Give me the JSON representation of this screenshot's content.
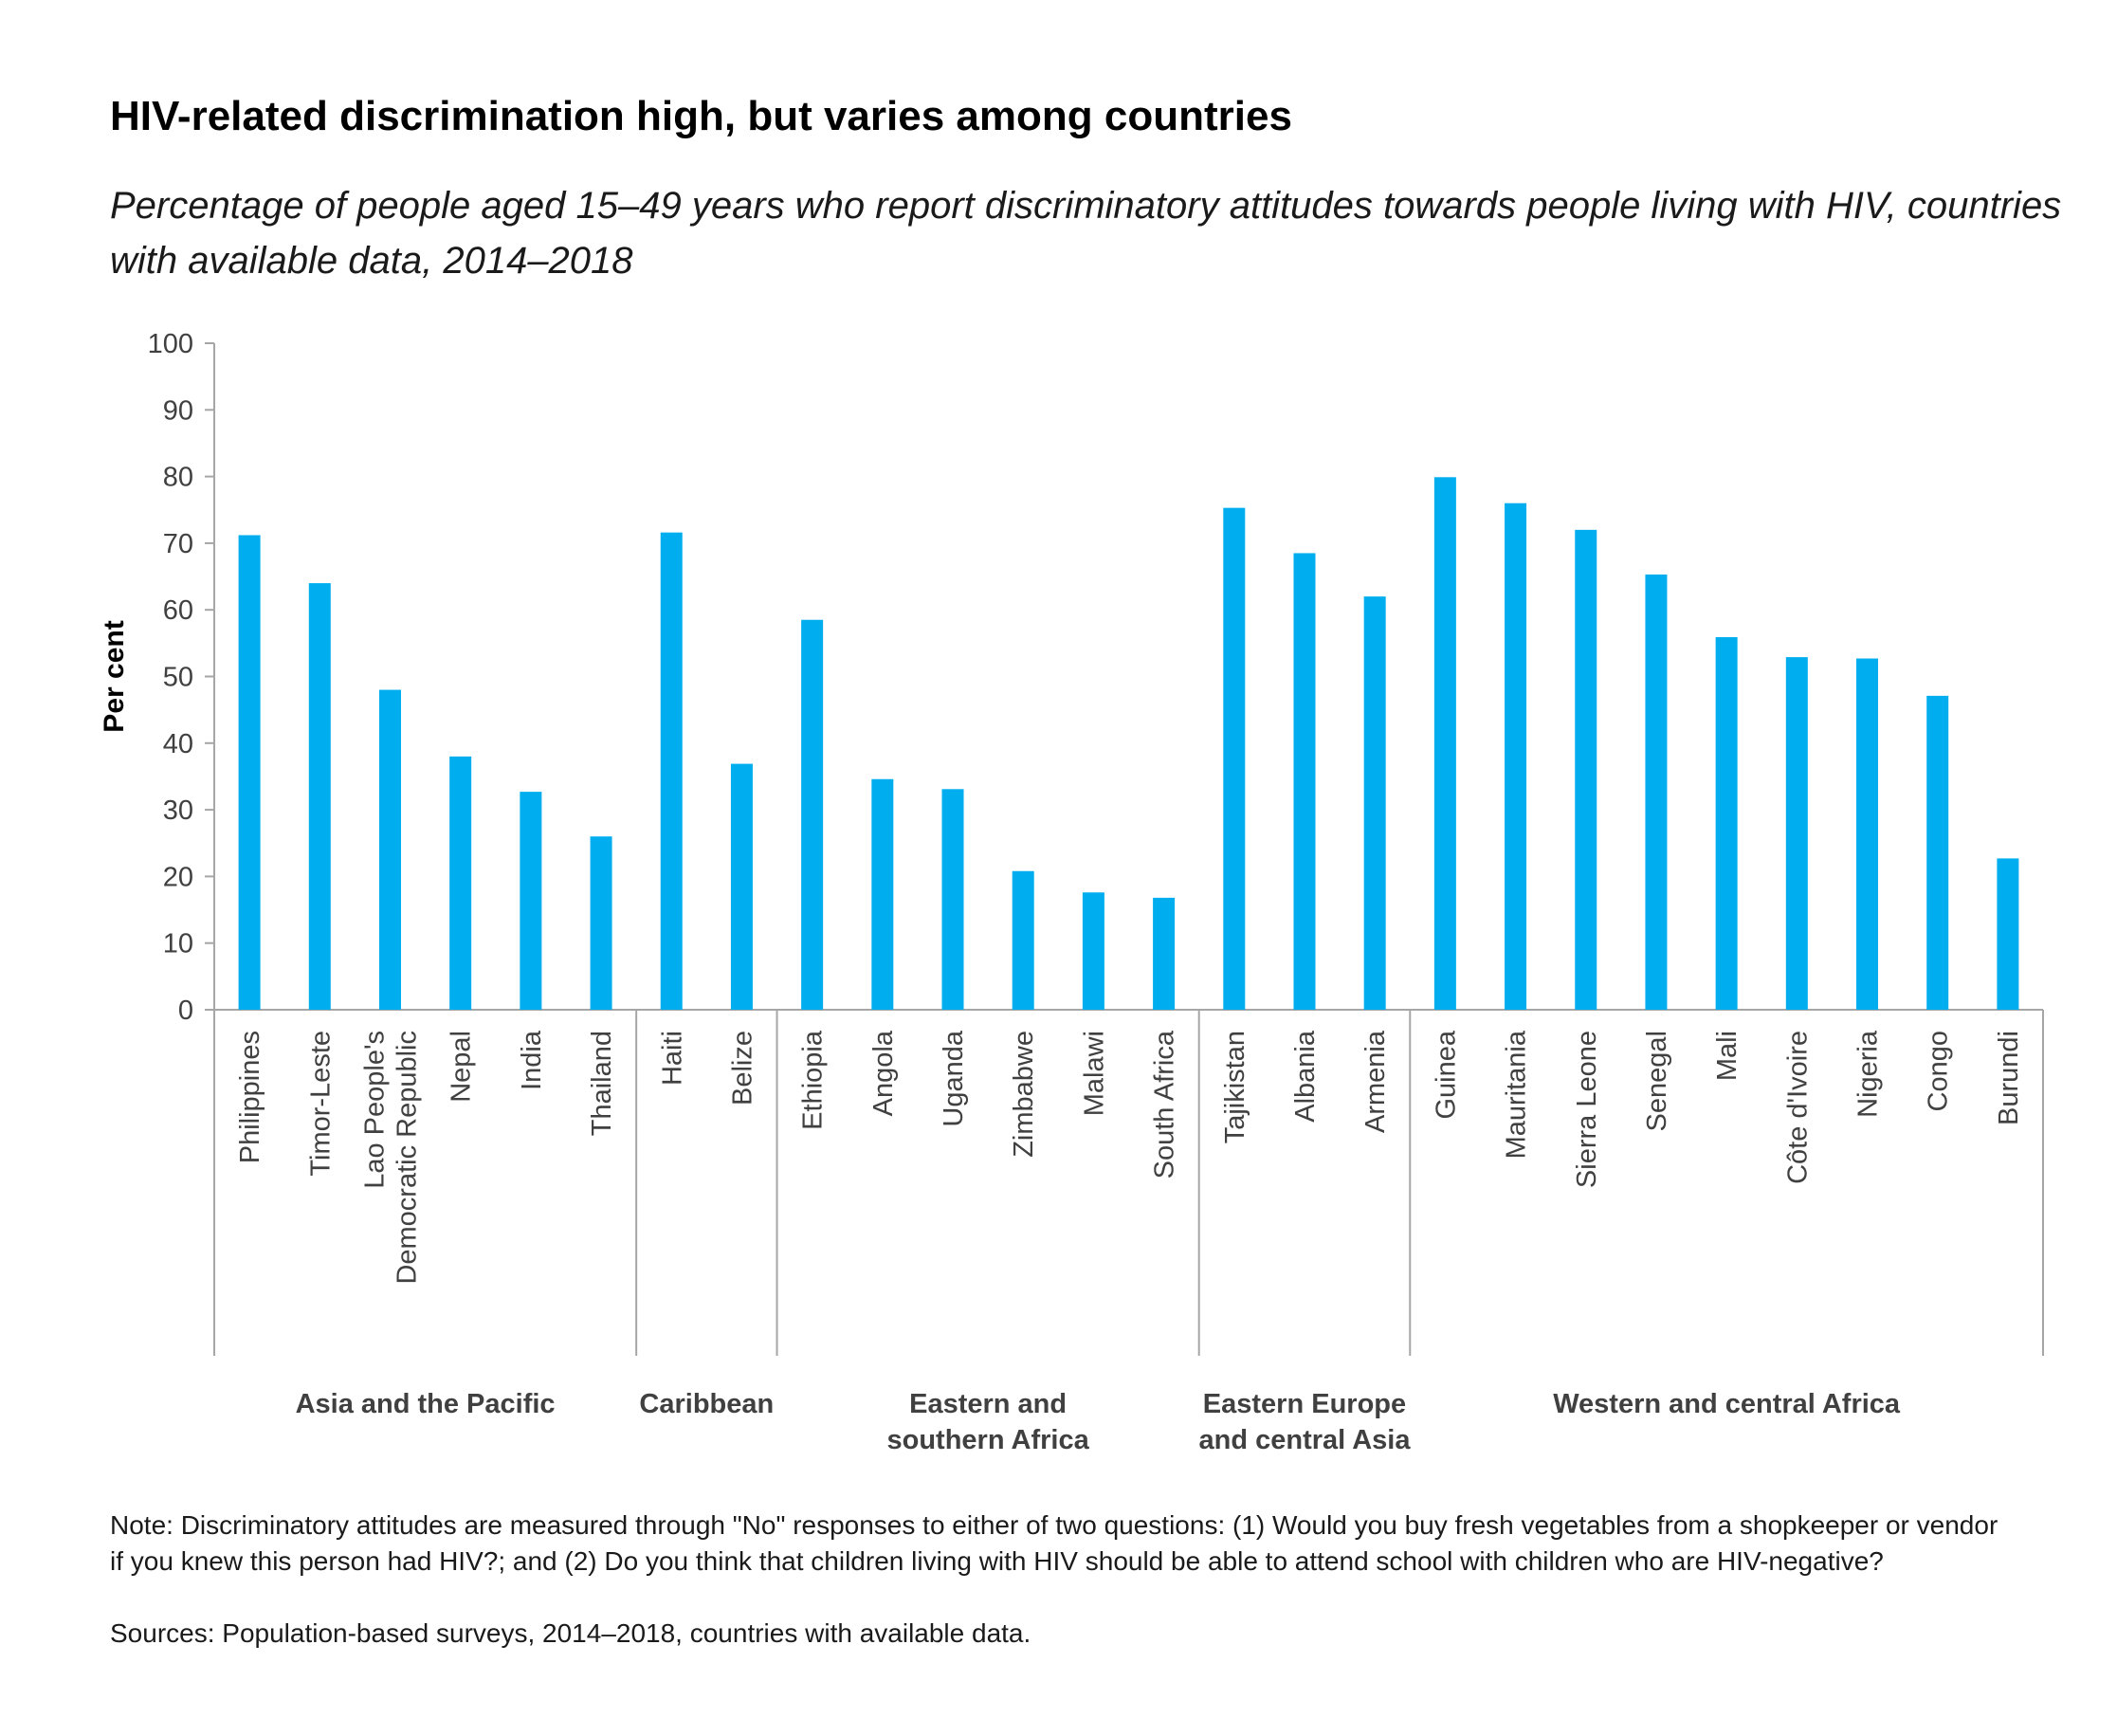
{
  "title": "HIV-related discrimination high, but varies among countries",
  "subtitle": "Percentage of people aged 15–49 years who report discriminatory attitudes towards people living with HIV, countries with available data, 2014–2018",
  "note": "Note: Discriminatory attitudes are measured through \"No\" responses to either of two questions: (1) Would you buy fresh vegetables from a shopkeeper or vendor if you knew this person had HIV?; and (2) Do you think that children living with HIV should be able to attend school with children who are HIV-negative?",
  "source": "Sources: Population-based surveys, 2014–2018, countries with available data.",
  "colors": {
    "bar": "#00AEEF",
    "axis": "#A6A6A6",
    "text": "#404040"
  },
  "chart_data": {
    "type": "bar",
    "ylabel": "Per cent",
    "xlabel": "",
    "ylim": [
      0,
      100
    ],
    "yticks": [
      "0",
      "10",
      "20",
      "30",
      "40",
      "50",
      "60",
      "70",
      "80",
      "90",
      "100"
    ],
    "grid": false,
    "legend": "none",
    "categories": [
      [
        "Philippines"
      ],
      [
        "Timor-Leste"
      ],
      [
        "Lao People's",
        "Democratic Republic"
      ],
      [
        "Nepal"
      ],
      [
        "India"
      ],
      [
        "Thailand"
      ],
      [
        "Haiti"
      ],
      [
        "Belize"
      ],
      [
        "Ethiopia"
      ],
      [
        "Angola"
      ],
      [
        "Uganda"
      ],
      [
        "Zimbabwe"
      ],
      [
        "Malawi"
      ],
      [
        "South Africa"
      ],
      [
        "Tajikistan"
      ],
      [
        "Albania"
      ],
      [
        "Armenia"
      ],
      [
        "Guinea"
      ],
      [
        "Mauritania"
      ],
      [
        "Sierra Leone"
      ],
      [
        "Senegal"
      ],
      [
        "Mali"
      ],
      [
        "Côte d'Ivoire"
      ],
      [
        "Nigeria"
      ],
      [
        "Congo"
      ],
      [
        "Burundi"
      ]
    ],
    "values": [
      71.2,
      64,
      48,
      38,
      32.7,
      26,
      71.6,
      36.9,
      58.5,
      34.6,
      33.1,
      20.8,
      17.6,
      16.8,
      75.3,
      68.5,
      62,
      79.9,
      76,
      72,
      65.3,
      55.9,
      52.9,
      52.7,
      47.1,
      22.7
    ],
    "groups": [
      {
        "label": [
          "Asia and the Pacific"
        ],
        "count": 6
      },
      {
        "label": [
          "Caribbean"
        ],
        "count": 2
      },
      {
        "label": [
          "Eastern and",
          "southern Africa"
        ],
        "count": 6
      },
      {
        "label": [
          "Eastern Europe",
          "and central Asia"
        ],
        "count": 3
      },
      {
        "label": [
          "Western and central Africa"
        ],
        "count": 9
      }
    ]
  }
}
